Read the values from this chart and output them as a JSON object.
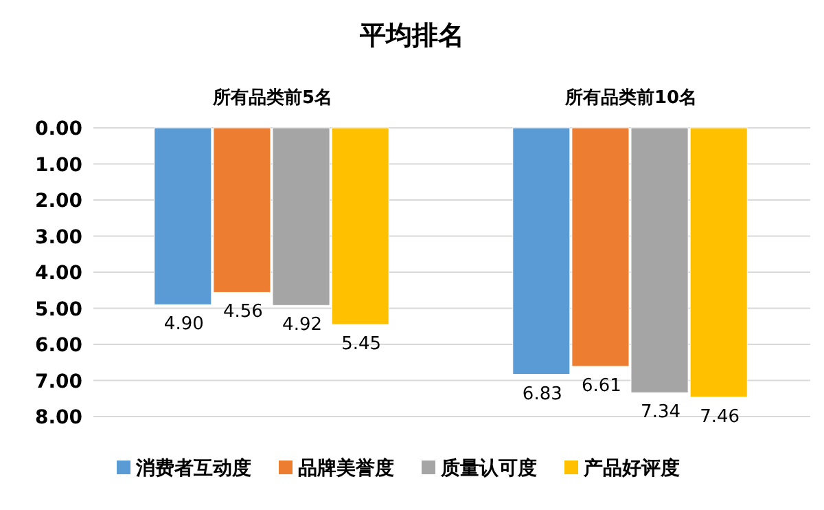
{
  "chart_data": {
    "type": "bar",
    "title": "平均排名",
    "categories": [
      "所有品类前5名",
      "所有品类前10名"
    ],
    "series": [
      {
        "name": "消费者互动度",
        "color": "#5b9bd5",
        "values": [
          4.9,
          6.83
        ],
        "value_labels": [
          "4.90",
          "6.83"
        ]
      },
      {
        "name": "品牌美誉度",
        "color": "#ed7d31",
        "values": [
          4.56,
          6.61
        ],
        "value_labels": [
          "4.56",
          "6.61"
        ]
      },
      {
        "name": "质量认可度",
        "color": "#a5a5a5",
        "values": [
          4.92,
          7.34
        ],
        "value_labels": [
          "4.92",
          "7.34"
        ]
      },
      {
        "name": "产品好评度",
        "color": "#ffc000",
        "values": [
          5.45,
          7.46
        ],
        "value_labels": [
          "5.45",
          "7.46"
        ]
      }
    ],
    "ylim": [
      8,
      0
    ],
    "yticks": [
      {
        "value": 0,
        "label": "0.00"
      },
      {
        "value": 1,
        "label": "1.00"
      },
      {
        "value": 2,
        "label": "2.00"
      },
      {
        "value": 3,
        "label": "3.00"
      },
      {
        "value": 4,
        "label": "4.00"
      },
      {
        "value": 5,
        "label": "5.00"
      },
      {
        "value": 6,
        "label": "6.00"
      },
      {
        "value": 7,
        "label": "7.00"
      },
      {
        "value": 8,
        "label": "8.00"
      }
    ],
    "grid": "y",
    "legend": "bottom"
  }
}
